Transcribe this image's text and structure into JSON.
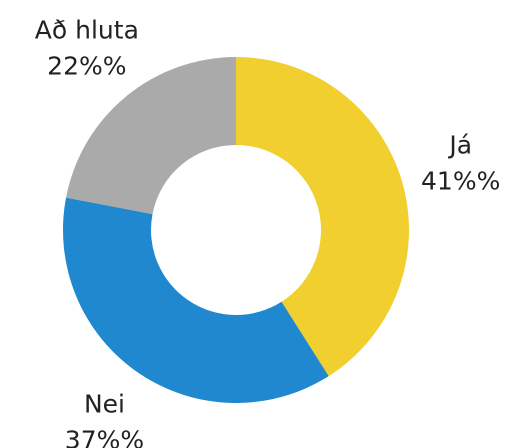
{
  "chart_data": {
    "type": "pie",
    "categories": [
      "Já",
      "Nei",
      "Að hluta"
    ],
    "values": [
      41,
      37,
      22
    ],
    "value_labels": [
      "41%%",
      "37%%",
      "22%%"
    ],
    "colors": [
      "#f0cf2e",
      "#1f88cf",
      "#aaaaaa"
    ]
  }
}
